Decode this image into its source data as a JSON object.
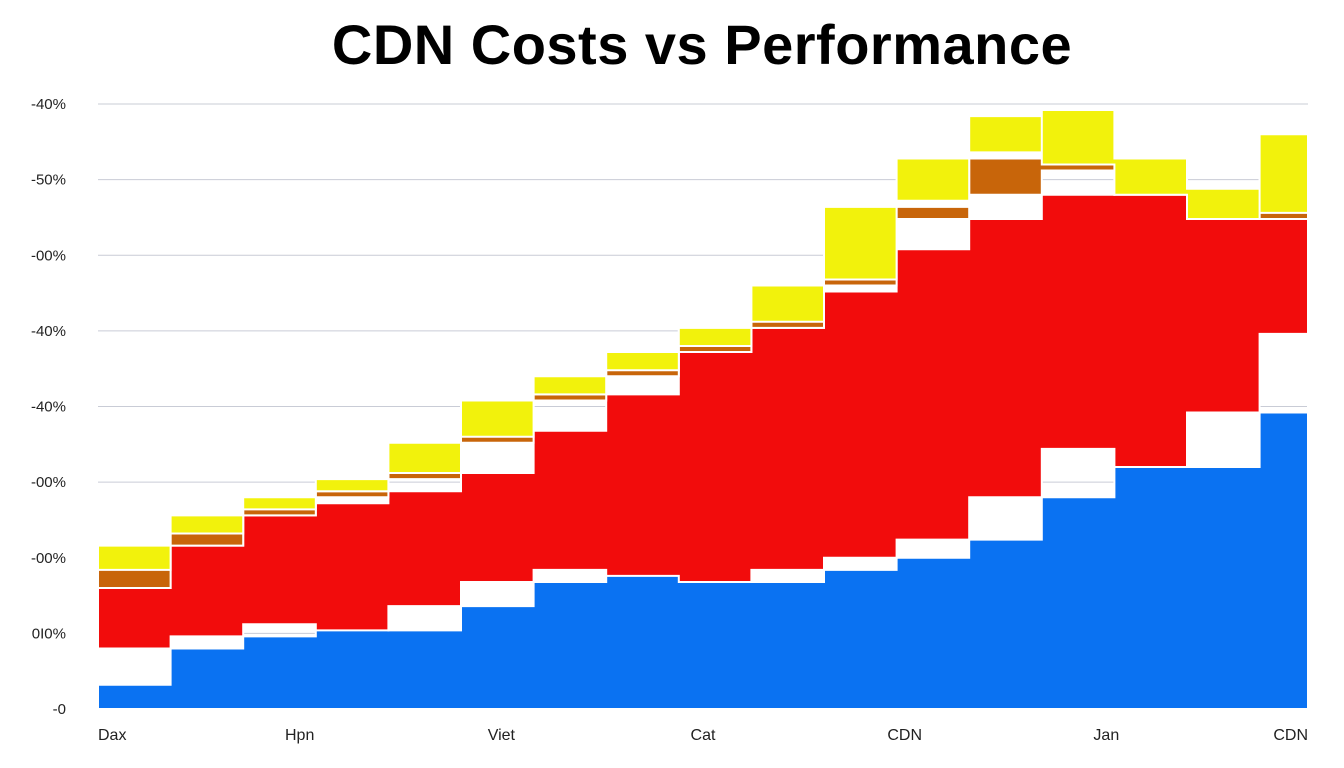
{
  "chart_data": {
    "type": "area",
    "title": "CDN Costs vs Performance",
    "xlabel": "",
    "ylabel": "",
    "stacked": true,
    "legend": "none",
    "grid": true,
    "x_ticks": [
      "Dax",
      "Hpn",
      "Viet",
      "Cat",
      "CDN",
      "Jan",
      "CDN"
    ],
    "y_ticks": [
      "-40%",
      "-50%",
      "-00%",
      "-40%",
      "-40%",
      "-00%",
      "-00%",
      "0I0%",
      "-0"
    ],
    "ylim": [
      0,
      100
    ],
    "x": [
      0,
      6,
      12,
      18,
      24,
      30,
      36,
      42,
      48,
      54,
      60,
      66,
      72,
      78,
      84,
      90,
      96,
      100
    ],
    "series": [
      {
        "name": "Blue",
        "color": "#0a72f2",
        "values": [
          4,
          10,
          12,
          14,
          13,
          17,
          21,
          23,
          22,
          21,
          23,
          25,
          28,
          35,
          43,
          40,
          49,
          62
        ]
      },
      {
        "name": "Red",
        "color": "#f20c0c",
        "values": [
          16,
          17,
          20,
          20,
          23,
          22,
          25,
          29,
          37,
          42,
          46,
          51,
          53,
          50,
          46,
          45,
          32,
          33
        ]
      },
      {
        "name": "Brown",
        "color": "#c8650a",
        "values": [
          0,
          0,
          0,
          1,
          2,
          5,
          5,
          3,
          0,
          0,
          1,
          7,
          10,
          13,
          1,
          0,
          0,
          0
        ]
      },
      {
        "name": "Yellow",
        "color": "#f2f20c",
        "values": [
          3,
          2,
          1,
          1,
          1,
          1,
          1,
          1,
          1,
          1,
          1,
          1,
          1,
          1,
          1,
          1,
          1,
          1
        ]
      }
    ]
  }
}
